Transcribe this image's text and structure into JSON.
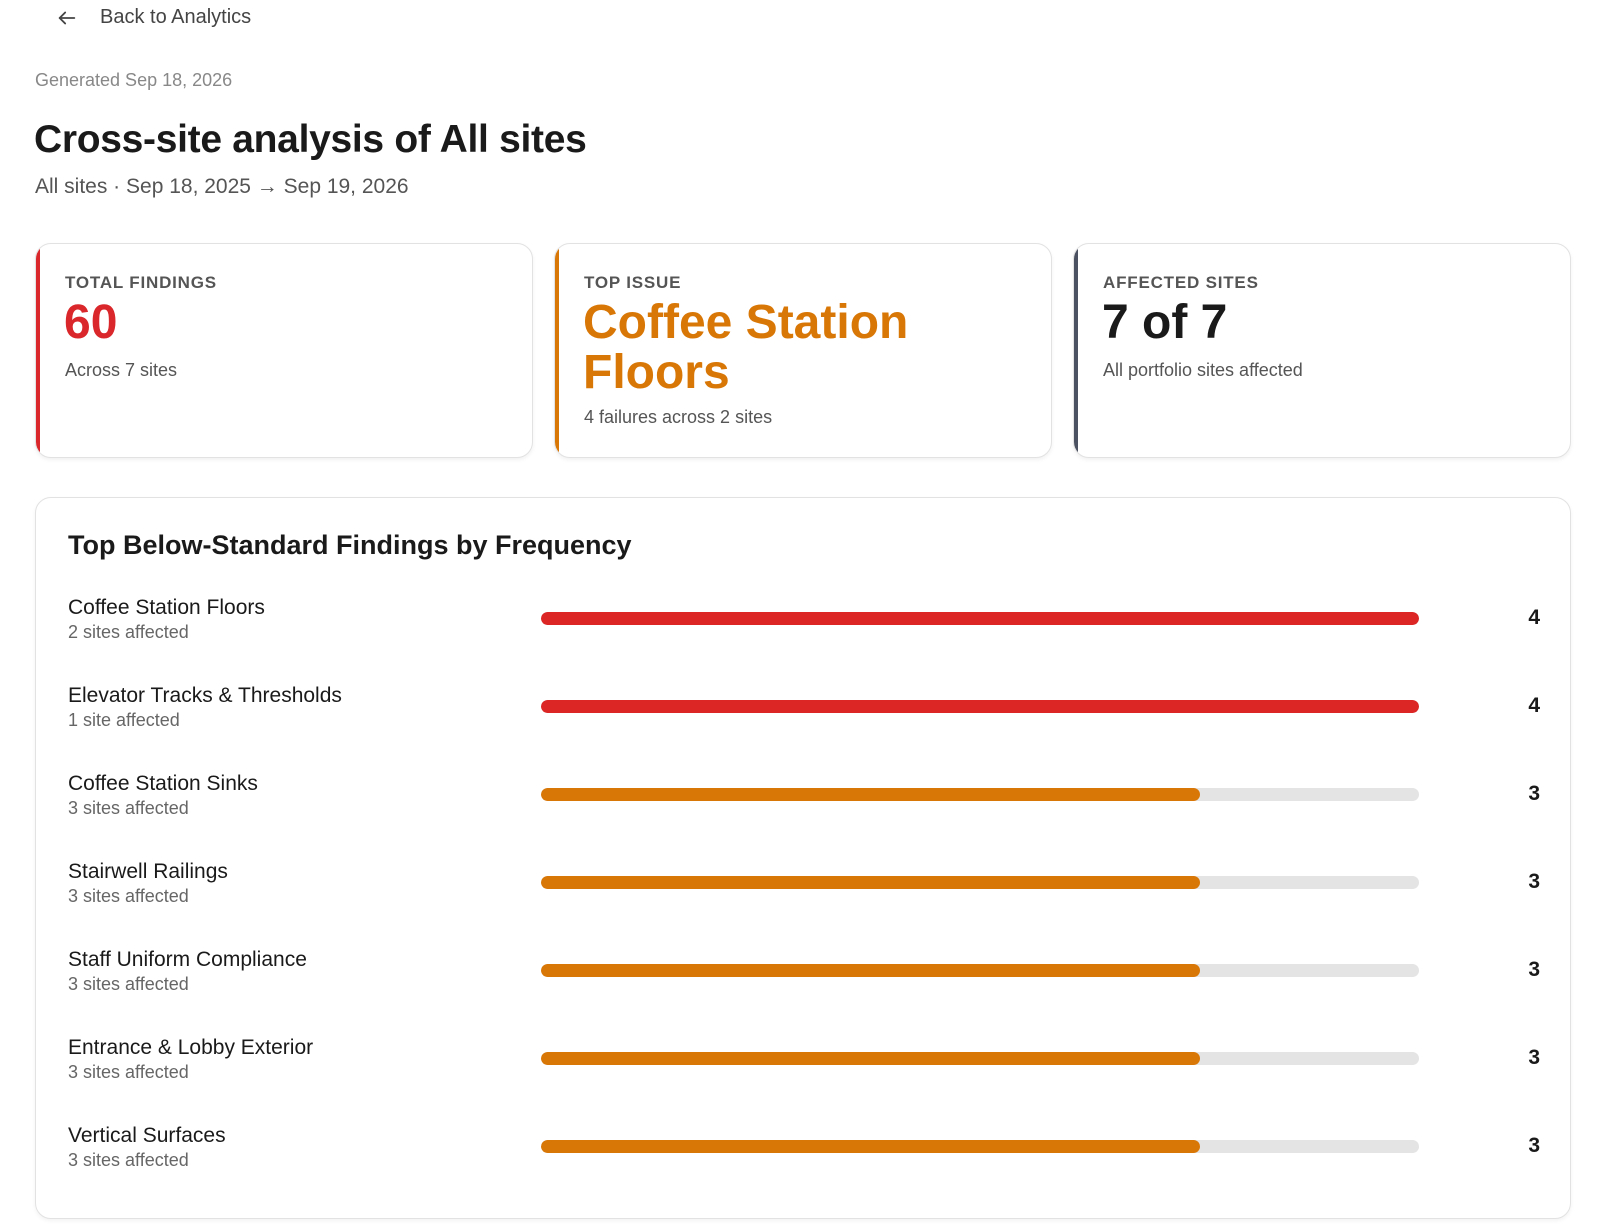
{
  "nav": {
    "back_label": "Back to Analytics"
  },
  "header": {
    "generated": "Generated Sep 18, 2026",
    "title": "Cross-site analysis of All sites",
    "subtitle": "All sites · Sep 18, 2025 → Sep 19, 2026"
  },
  "cards": [
    {
      "label": "TOTAL FINDINGS",
      "value": "60",
      "note": "Across 7 sites",
      "accent": "#d9272b"
    },
    {
      "label": "TOP ISSUE",
      "value": "Coffee Station Floors",
      "note": "4 failures across 2 sites",
      "accent": "#d97706"
    },
    {
      "label": "AFFECTED SITES",
      "value": "7 of 7",
      "note": "All portfolio sites affected",
      "accent": "#4b5160"
    }
  ],
  "findings": {
    "title": "Top Below-Standard Findings by Frequency",
    "max": 4,
    "items": [
      {
        "name": "Coffee Station Floors",
        "sites": "2 sites affected",
        "count": 4,
        "color": "#dc2626"
      },
      {
        "name": "Elevator Tracks & Thresholds",
        "sites": "1 site affected",
        "count": 4,
        "color": "#dc2626"
      },
      {
        "name": "Coffee Station Sinks",
        "sites": "3 sites affected",
        "count": 3,
        "color": "#d97706"
      },
      {
        "name": "Stairwell Railings",
        "sites": "3 sites affected",
        "count": 3,
        "color": "#d97706"
      },
      {
        "name": "Staff Uniform Compliance",
        "sites": "3 sites affected",
        "count": 3,
        "color": "#d97706"
      },
      {
        "name": "Entrance & Lobby Exterior",
        "sites": "3 sites affected",
        "count": 3,
        "color": "#d97706"
      },
      {
        "name": "Vertical Surfaces",
        "sites": "3 sites affected",
        "count": 3,
        "color": "#d97706"
      }
    ]
  }
}
